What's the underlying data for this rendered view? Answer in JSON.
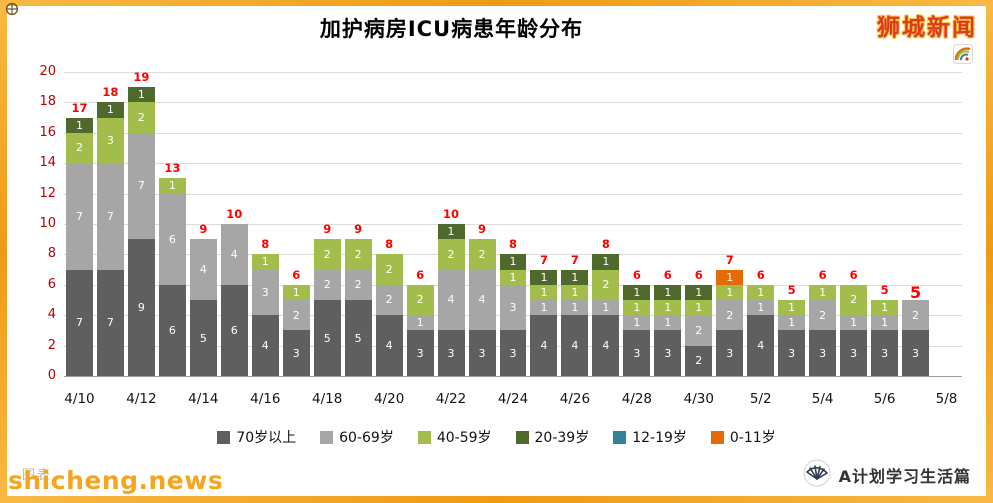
{
  "header": {
    "title": "加护病房ICU病患年龄分布",
    "brand": "狮城新闻"
  },
  "footer": {
    "watermark_back": "图表",
    "watermark_front": "shicheng.news",
    "credit": "A计划学习生活篇"
  },
  "colors": {
    "frame": "#F5A329",
    "brand_red": "#E03A1E",
    "watermark_orange": "#F7A41F",
    "total_label": "#FF0000",
    "y_axis_label": "#C00000",
    "segment_label": "#FFFFFF"
  },
  "chart_data": {
    "type": "bar",
    "stacked": true,
    "title": "加护病房ICU病患年龄分布",
    "ylim": [
      0,
      20
    ],
    "y_tick_step": 2,
    "grid": true,
    "legend_position": "bottom",
    "num_slots": 29,
    "x_tick_every_n_slots": 2,
    "x_tick_labels": [
      "4/10",
      "4/12",
      "4/14",
      "4/16",
      "4/18",
      "4/20",
      "4/22",
      "4/24",
      "4/26",
      "4/28",
      "4/30",
      "5/2",
      "5/4",
      "5/6",
      "5/8"
    ],
    "totals": [
      17,
      18,
      19,
      13,
      9,
      10,
      8,
      6,
      9,
      9,
      8,
      6,
      10,
      9,
      8,
      7,
      7,
      8,
      6,
      6,
      6,
      7,
      6,
      5,
      6,
      6,
      5,
      5,
      null
    ],
    "emphasized_total_index": 27,
    "series": [
      {
        "name": "70岁以上",
        "color": "#5F5F5F",
        "values": [
          7,
          7,
          9,
          6,
          5,
          6,
          4,
          3,
          5,
          5,
          4,
          3,
          3,
          3,
          3,
          4,
          4,
          4,
          3,
          3,
          2,
          3,
          4,
          3,
          3,
          3,
          3,
          3,
          0
        ]
      },
      {
        "name": "60-69岁",
        "color": "#A6A6A6",
        "values": [
          7,
          7,
          7,
          6,
          4,
          4,
          3,
          2,
          2,
          2,
          2,
          1,
          4,
          4,
          3,
          1,
          1,
          1,
          1,
          1,
          2,
          2,
          1,
          1,
          2,
          1,
          1,
          2,
          0
        ]
      },
      {
        "name": "40-59岁",
        "color": "#A3BD4C",
        "values": [
          2,
          3,
          2,
          1,
          0,
          0,
          1,
          1,
          2,
          2,
          2,
          2,
          2,
          2,
          1,
          1,
          1,
          2,
          1,
          1,
          1,
          1,
          1,
          1,
          1,
          2,
          1,
          0,
          0
        ]
      },
      {
        "name": "20-39岁",
        "color": "#4F682C",
        "values": [
          1,
          1,
          1,
          0,
          0,
          0,
          0,
          0,
          0,
          0,
          0,
          0,
          1,
          0,
          1,
          1,
          1,
          1,
          1,
          1,
          1,
          0,
          0,
          0,
          0,
          0,
          0,
          0,
          0
        ]
      },
      {
        "name": "12-19岁",
        "color": "#31849B",
        "values": [
          0,
          0,
          0,
          0,
          0,
          0,
          0,
          0,
          0,
          0,
          0,
          0,
          0,
          0,
          0,
          0,
          0,
          0,
          0,
          0,
          0,
          0,
          0,
          0,
          0,
          0,
          0,
          0,
          0
        ]
      },
      {
        "name": "0-11岁",
        "color": "#E36C09",
        "values": [
          0,
          0,
          0,
          0,
          0,
          0,
          0,
          0,
          0,
          0,
          0,
          0,
          0,
          0,
          0,
          0,
          0,
          0,
          0,
          0,
          0,
          1,
          0,
          0,
          0,
          0,
          0,
          0,
          0
        ]
      }
    ]
  }
}
